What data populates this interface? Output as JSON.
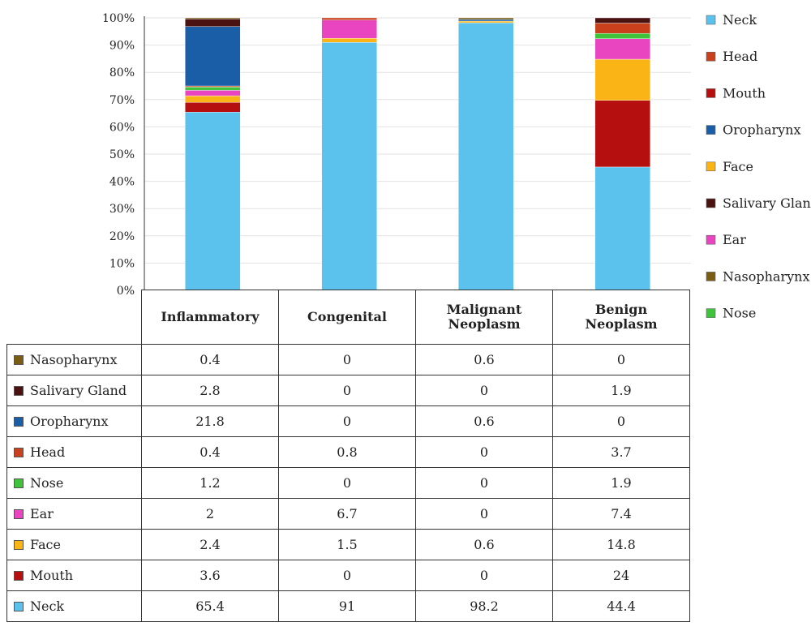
{
  "chart_data": {
    "type": "bar",
    "stacked": true,
    "normalized": true,
    "categories": [
      "Inflammatory",
      "Congenital",
      "Malignant Neoplasm",
      "Benign Neoplasm"
    ],
    "ylim": [
      0,
      100
    ],
    "yticks": [
      "0%",
      "10%",
      "20%",
      "30%",
      "40%",
      "50%",
      "60%",
      "70%",
      "80%",
      "90%",
      "100%"
    ],
    "legend_position": "right",
    "stack_order": [
      "Neck",
      "Mouth",
      "Face",
      "Ear",
      "Nose",
      "Head",
      "Oropharynx",
      "Salivary Gland",
      "Nasopharynx"
    ],
    "series": [
      {
        "name": "Neck",
        "color": "#5bc2ee",
        "values": [
          65.4,
          91,
          98.2,
          44.4
        ]
      },
      {
        "name": "Head",
        "color": "#c8401c",
        "values": [
          0.4,
          0.8,
          0,
          3.7
        ]
      },
      {
        "name": "Mouth",
        "color": "#b5100f",
        "values": [
          3.6,
          0,
          0,
          24
        ]
      },
      {
        "name": "Oropharynx",
        "color": "#1b5ea8",
        "values": [
          21.8,
          0,
          0.6,
          0
        ]
      },
      {
        "name": "Face",
        "color": "#fbb416",
        "values": [
          2.4,
          1.5,
          0.6,
          14.8
        ]
      },
      {
        "name": "Salivary Gland",
        "color": "#4a1210",
        "values": [
          2.8,
          0,
          0,
          1.9
        ]
      },
      {
        "name": "Ear",
        "color": "#ea45c0",
        "values": [
          2,
          6.7,
          0,
          7.4
        ]
      },
      {
        "name": "Nasopharynx",
        "color": "#7a5c12",
        "values": [
          0.4,
          0,
          0.6,
          0
        ]
      },
      {
        "name": "Nose",
        "color": "#3fc33a",
        "values": [
          1.2,
          0,
          0,
          1.9
        ]
      }
    ],
    "legend": [
      "Neck",
      "Head",
      "Mouth",
      "Oropharynx",
      "Face",
      "Salivary Gland",
      "Ear",
      "Nasopharynx",
      "Nose"
    ],
    "table": {
      "header": [
        "Inflammatory",
        "Congenital",
        "Malignant\nNeoplasm",
        "Benign\nNeoplasm"
      ],
      "rows": [
        {
          "label": "Nasopharynx",
          "values": [
            "0.4",
            "0",
            "0.6",
            "0"
          ]
        },
        {
          "label": "Salivary Gland",
          "values": [
            "2.8",
            "0",
            "0",
            "1.9"
          ]
        },
        {
          "label": "Oropharynx",
          "values": [
            "21.8",
            "0",
            "0.6",
            "0"
          ]
        },
        {
          "label": "Head",
          "values": [
            "0.4",
            "0.8",
            "0",
            "3.7"
          ]
        },
        {
          "label": "Nose",
          "values": [
            "1.2",
            "0",
            "0",
            "1.9"
          ]
        },
        {
          "label": "Ear",
          "values": [
            "2",
            "6.7",
            "0",
            "7.4"
          ]
        },
        {
          "label": "Face",
          "values": [
            "2.4",
            "1.5",
            "0.6",
            "14.8"
          ]
        },
        {
          "label": "Mouth",
          "values": [
            "3.6",
            "0",
            "0",
            "24"
          ]
        },
        {
          "label": "Neck",
          "values": [
            "65.4",
            "91",
            "98.2",
            "44.4"
          ]
        }
      ]
    }
  }
}
